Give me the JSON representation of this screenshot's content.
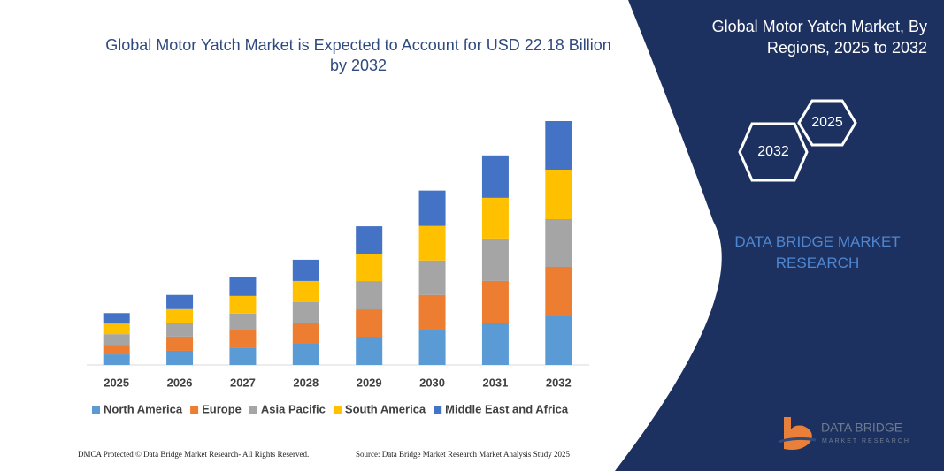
{
  "chart_data": {
    "type": "stacked-bar",
    "title": "Global Motor Yatch Market is Expected to Account for USD 22.18 Billion by 2032",
    "categories": [
      "2025",
      "2026",
      "2027",
      "2028",
      "2029",
      "2030",
      "2031",
      "2032"
    ],
    "series": [
      {
        "name": "North America",
        "color": "#5b9bd5",
        "values": [
          0.96,
          1.29,
          1.53,
          1.93,
          2.57,
          3.14,
          3.78,
          4.42
        ]
      },
      {
        "name": "Europe",
        "color": "#ed7d31",
        "values": [
          0.88,
          1.29,
          1.61,
          1.85,
          2.49,
          3.22,
          3.86,
          4.5
        ]
      },
      {
        "name": "Asia Pacific",
        "color": "#a5a5a5",
        "values": [
          0.96,
          1.21,
          1.53,
          1.93,
          2.57,
          3.14,
          3.86,
          4.34
        ]
      },
      {
        "name": "South America",
        "color": "#ffc000",
        "values": [
          0.96,
          1.29,
          1.61,
          1.93,
          2.49,
          3.14,
          3.7,
          4.5
        ]
      },
      {
        "name": "Middle East and Africa",
        "color": "#4472c4",
        "values": [
          0.96,
          1.29,
          1.69,
          1.93,
          2.49,
          3.22,
          3.86,
          4.42
        ]
      }
    ],
    "legend": "bottom"
  },
  "panel": {
    "title": "Global Motor Yatch Market, By Regions, 2025 to 2032",
    "hex_back": "2025",
    "hex_front": "2032",
    "brand": "DATA BRIDGE MARKET RESEARCH"
  },
  "logo": {
    "name": "DATA BRIDGE",
    "tagline": "MARKET RESEARCH"
  },
  "footer": {
    "left": "DMCA Protected © Data Bridge Market Research- All Rights Reserved.",
    "right": "Source: Data Bridge Market Research Market Analysis Study 2025"
  }
}
